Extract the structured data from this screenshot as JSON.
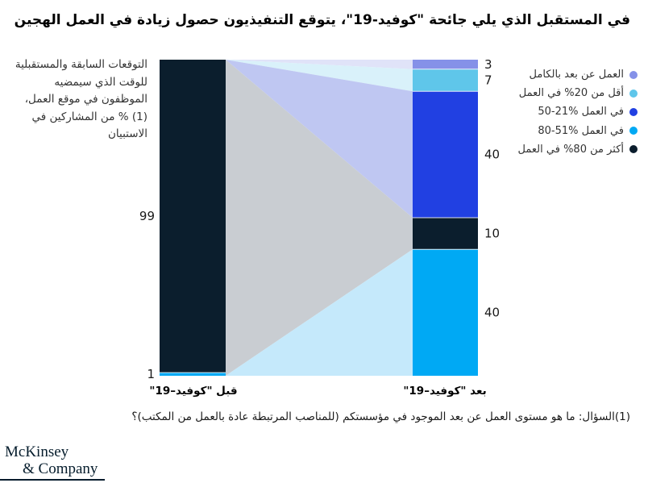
{
  "header": {
    "title": "في المستقبل الذي يلي جائحة \"كوفيد-19\"، يتوقع التنفيذيون حصول زيادة في العمل الهجين"
  },
  "chart": {
    "description": "التوقعات السابقة والمستقبلية للوقت الذي سيمضيه الموظفون في موقع العمل،(1) % من المشاركين في الاستبيان"
  },
  "chart_data": {
    "type": "area",
    "subtype": "flow-stacked-bars",
    "title": "في المستقبل الذي يلي جائحة \"كوفيد-19\"، يتوقع التنفيذيون حصول زيادة في العمل الهجين",
    "total": 100,
    "categories": [
      "قبل \"كوفيد–19\"",
      "بعد \"كوفيد–19\""
    ],
    "bars": [
      {
        "category": "قبل \"كوفيد–19\"",
        "segments": [
          {
            "label": "أكثر من 80% في العمل",
            "value": 99,
            "color": "#0b1e2d"
          },
          {
            "label": "في العمل %51-80",
            "value": 1,
            "color": "#00a9f4"
          }
        ]
      },
      {
        "category": "بعد \"كوفيد–19\"",
        "segments": [
          {
            "label": "العمل عن بعد بالكامل",
            "value": 3,
            "color": "#8591e8"
          },
          {
            "label": "أقل من 20% في العمل",
            "value": 7,
            "color": "#5fc6ea"
          },
          {
            "label": "في العمل %21-50",
            "value": 40,
            "color": "#2140e2"
          },
          {
            "label": "أكثر من 80% في العمل",
            "value": 10,
            "color": "#0b1e2d"
          },
          {
            "label": "في العمل %51-80",
            "value": 40,
            "color": "#00a9f4"
          }
        ]
      }
    ],
    "flows": [
      {
        "origin": "top",
        "to_segment": 0,
        "color": "#e0e3f8"
      },
      {
        "origin": "top",
        "to_segment": 1,
        "color": "#d9f1fa"
      },
      {
        "origin": "top",
        "to_segment": 2,
        "color": "#bfc7f2"
      },
      {
        "origin": "edge",
        "to_segment": 3,
        "color": "#c9cdd2"
      },
      {
        "origin": "bottom",
        "to_segment": 4,
        "color": "#c5e9fb"
      }
    ],
    "grid": false,
    "legend_position": "right"
  },
  "legend": {
    "items": [
      {
        "label": "العمل عن بعد بالكامل",
        "color": "#8591e8"
      },
      {
        "label": "أقل من 20% في العمل",
        "color": "#5fc6ea"
      },
      {
        "label": "في العمل %21-50",
        "color": "#2140e2"
      },
      {
        "label": "في العمل %51-80",
        "color": "#00a9f4"
      },
      {
        "label": "أكثر من 80% في العمل",
        "color": "#0b1e2d"
      }
    ]
  },
  "footnote": {
    "text": "(1)السؤال: ما هو مستوى العمل عن بعد الموجود في مؤسستكم (للمناصب المرتبطة عادة بالعمل من المكتب)؟"
  },
  "logo": {
    "line1": "McKinsey",
    "line2": "& Company"
  }
}
